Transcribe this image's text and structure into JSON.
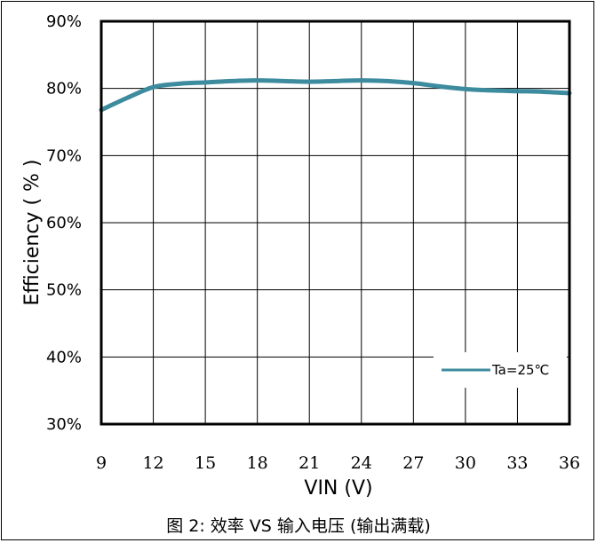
{
  "chart_data": {
    "type": "line",
    "title": "",
    "xlabel": "VIN (V)",
    "ylabel": "Efficiency ( % )",
    "x_ticks": [
      "9",
      "12",
      "15",
      "18",
      "21",
      "24",
      "27",
      "30",
      "33",
      "36"
    ],
    "y_ticks": [
      "30%",
      "40%",
      "50%",
      "60%",
      "70%",
      "80%",
      "90%"
    ],
    "xlim": [
      9,
      36
    ],
    "ylim": [
      30,
      90
    ],
    "grid": true,
    "legend_position": "bottom-right",
    "series": [
      {
        "name": "Ta=25℃",
        "color": "#3d8b9e",
        "x": [
          9,
          10.5,
          12,
          13.5,
          15,
          16.5,
          18,
          19.5,
          21,
          22.5,
          24,
          25.5,
          27,
          28.5,
          30,
          31.5,
          33,
          34.5,
          36
        ],
        "y": [
          76.8,
          78.6,
          80.2,
          80.7,
          80.9,
          81.1,
          81.2,
          81.1,
          81.0,
          81.1,
          81.2,
          81.1,
          80.8,
          80.3,
          79.9,
          79.7,
          79.6,
          79.5,
          79.3
        ]
      }
    ]
  },
  "caption": "图 2: 效率 VS 输入电压 (输出满载)"
}
